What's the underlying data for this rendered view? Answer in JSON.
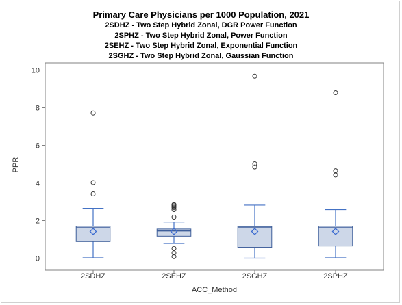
{
  "chart_data": {
    "type": "boxplot",
    "title": "Primary Care Physicians per 1000 Population, 2021",
    "subtitles": [
      "2SDHZ - Two Step Hybrid Zonal, DGR Power Function",
      "2SPHZ - Two Step Hybrid Zonal, Power Function",
      "2SEHZ - Two Step Hybrid Zonal, Exponential Function",
      "2SGHZ - Two Step Hybrid Zonal, Gaussian Function"
    ],
    "xlabel": "ACC_Method",
    "ylabel": "PPR",
    "ylim": [
      0,
      10
    ],
    "yticks": [
      0,
      2,
      4,
      6,
      8,
      10
    ],
    "categories": [
      "2SDHZ",
      "2SEHZ",
      "2SGHZ",
      "2SPHZ"
    ],
    "boxes": [
      {
        "category": "2SDHZ",
        "whisker_low": 0.02,
        "q1": 0.88,
        "median": 1.62,
        "q3": 1.7,
        "whisker_high": 2.65,
        "mean": 1.42,
        "outliers": [
          3.42,
          4.02,
          7.72
        ]
      },
      {
        "category": "2SEHZ",
        "whisker_low": 0.78,
        "q1": 1.17,
        "median": 1.45,
        "q3": 1.55,
        "whisker_high": 1.92,
        "mean": 1.42,
        "outliers": [
          0.08,
          0.28,
          0.52,
          2.18,
          2.58,
          2.68,
          2.75,
          2.82,
          2.85
        ]
      },
      {
        "category": "2SGHZ",
        "whisker_low": 0.0,
        "q1": 0.58,
        "median": 1.62,
        "q3": 1.68,
        "whisker_high": 2.82,
        "mean": 1.42,
        "outliers": [
          4.85,
          5.02,
          9.68
        ]
      },
      {
        "category": "2SPHZ",
        "whisker_low": 0.02,
        "q1": 0.65,
        "median": 1.62,
        "q3": 1.7,
        "whisker_high": 2.58,
        "mean": 1.42,
        "outliers": [
          4.42,
          4.65,
          8.8
        ]
      }
    ],
    "grid": false,
    "colors": {
      "box_fill": "#cdd7e8",
      "box_stroke": "#3f5f9a",
      "whisker": "#4472c4",
      "mean_marker": "#3b6bd0",
      "outlier": "#333333"
    }
  }
}
